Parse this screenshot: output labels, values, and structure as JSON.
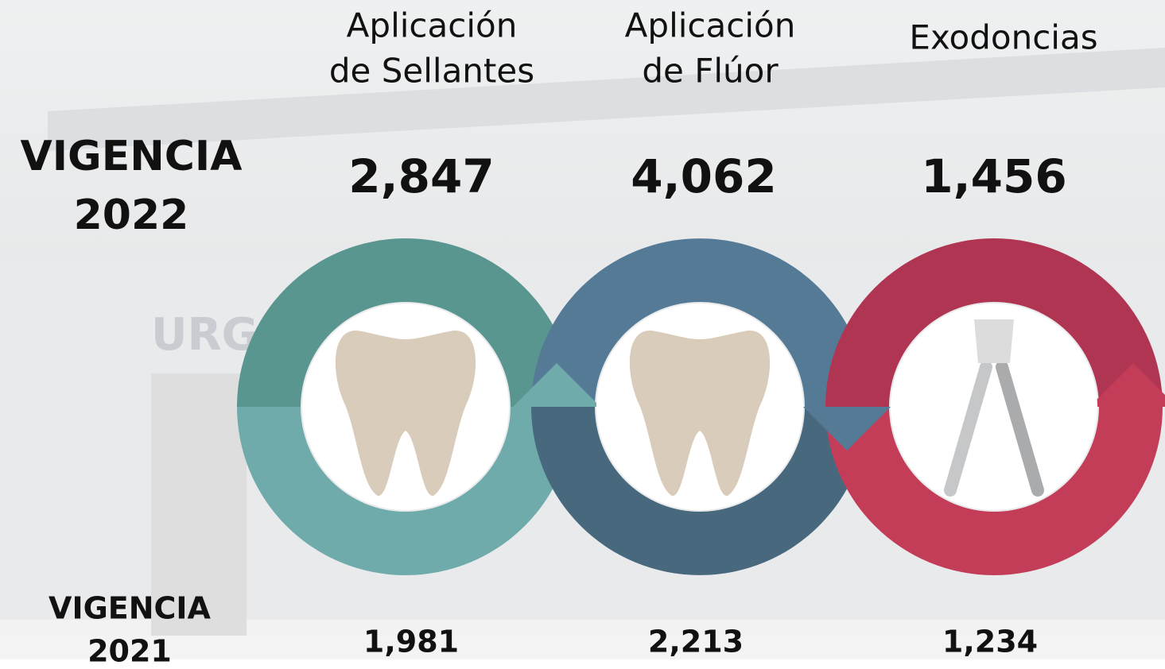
{
  "row_2022": {
    "line1": "VIGENCIA",
    "line2": "2022"
  },
  "row_2021": {
    "line1": "VIGENCIA",
    "line2": "2021"
  },
  "services": [
    {
      "name_lines": [
        "Aplicación",
        "de Sellantes"
      ],
      "value_2022": "2,847",
      "value_2021": "1,981"
    },
    {
      "name_lines": [
        "Aplicación",
        "de Flúor"
      ],
      "value_2022": "4,062",
      "value_2021": "2,213"
    },
    {
      "name_lines": [
        "Exodoncias"
      ],
      "value_2022": "1,456",
      "value_2021": "1,234"
    }
  ]
}
